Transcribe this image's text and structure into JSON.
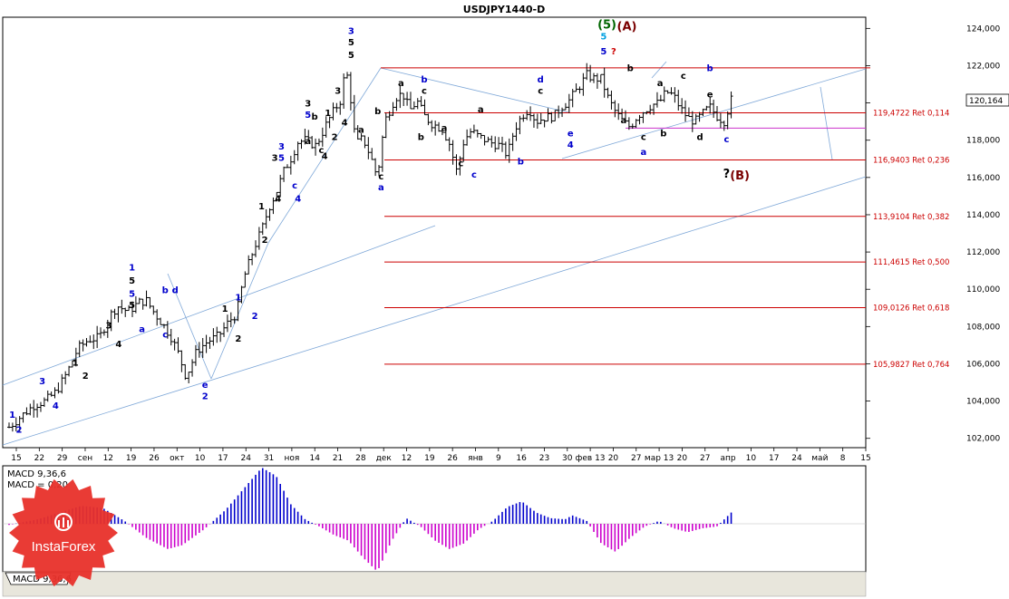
{
  "title": "USDJPY1440-D",
  "price_badge": "120,164",
  "macd": {
    "params_label": "MACD 9,36,6",
    "value_label": "MACD = 0,20",
    "tab_label": "MACD 9,36,6"
  },
  "logo": {
    "text": "InstaForex"
  },
  "colors": {
    "fib_line": "#cc0000",
    "channel": "#7fa8d8",
    "macd_pos": "#0000cc",
    "macd_neg": "#cc00cc",
    "support": "#cc33cc",
    "wave_blue": "#0000cc",
    "wave_black": "#000000",
    "wave_green": "#006600",
    "wave_brown": "#7a0000",
    "wave_red": "#cc0000",
    "wave_cyan": "#00a0e0"
  },
  "chart_data": {
    "type": "candlestick",
    "symbol": "USDJPY",
    "timeframe": "1440-D",
    "ylim": [
      101500,
      124600
    ],
    "y_ticks": [
      "124,000",
      "122,000",
      "120,000",
      "118,000",
      "116,000",
      "114,000",
      "112,000",
      "110,000",
      "108,000",
      "106,000",
      "104,000",
      "102,000"
    ],
    "y_tick_values": [
      124000,
      122000,
      120000,
      118000,
      116000,
      114000,
      112000,
      110000,
      108000,
      106000,
      104000,
      102000
    ],
    "x_ticks": [
      "15",
      "22",
      "29",
      "сен",
      "12",
      "19",
      "26",
      "окт",
      "10",
      "17",
      "24",
      "31",
      "ноя",
      "14",
      "21",
      "28",
      "дек",
      "12",
      "19",
      "26",
      "янв",
      "9",
      "16",
      "23",
      "30",
      "фев 13",
      "20",
      "27",
      "мар 13",
      "20",
      "27",
      "апр",
      "10",
      "17",
      "24",
      "май",
      "8",
      "15"
    ],
    "fib_levels": [
      {
        "label": "119,4722 Ret 0,114",
        "value": 119472.2
      },
      {
        "label": "116,9403 Ret 0,236",
        "value": 116940.3
      },
      {
        "label": "113,9104 Ret 0,382",
        "value": 113910.4
      },
      {
        "label": "111,4615 Ret 0,500",
        "value": 111461.5
      },
      {
        "label": "109,0126 Ret 0,618",
        "value": 109012.6
      },
      {
        "label": "105,9827 Ret 0,764",
        "value": 105982.7
      }
    ],
    "resistance_value": 121880,
    "support_value": 118650,
    "close_path": [
      [
        0,
        102600
      ],
      [
        4,
        103300
      ],
      [
        7,
        103800
      ],
      [
        10,
        104000
      ],
      [
        13,
        104500
      ],
      [
        16,
        105500
      ],
      [
        19,
        106800
      ],
      [
        22,
        107300
      ],
      [
        25,
        107400
      ],
      [
        28,
        108600
      ],
      [
        30,
        109100
      ],
      [
        33,
        108800
      ],
      [
        36,
        109300
      ],
      [
        38,
        109400
      ],
      [
        40,
        108800
      ],
      [
        43,
        108000
      ],
      [
        45,
        107400
      ],
      [
        47,
        106500
      ],
      [
        49,
        105300
      ],
      [
        52,
        106700
      ],
      [
        55,
        107200
      ],
      [
        58,
        107500
      ],
      [
        61,
        108300
      ],
      [
        63,
        108700
      ],
      [
        65,
        110600
      ],
      [
        68,
        112300
      ],
      [
        70,
        113200
      ],
      [
        72,
        114400
      ],
      [
        74,
        115200
      ],
      [
        76,
        116300
      ],
      [
        78,
        117000
      ],
      [
        80,
        117900
      ],
      [
        82,
        118000
      ],
      [
        85,
        117700
      ],
      [
        88,
        118900
      ],
      [
        90,
        119600
      ],
      [
        92,
        120200
      ],
      [
        93,
        121700
      ],
      [
        94,
        121300
      ],
      [
        96,
        117800
      ],
      [
        98,
        118100
      ],
      [
        100,
        117200
      ],
      [
        102,
        116000
      ],
      [
        104,
        119000
      ],
      [
        107,
        120300
      ],
      [
        109,
        120500
      ],
      [
        111,
        119600
      ],
      [
        113,
        120100
      ],
      [
        115,
        119300
      ],
      [
        117,
        118900
      ],
      [
        120,
        118600
      ],
      [
        122,
        117800
      ],
      [
        124,
        116300
      ],
      [
        126,
        118000
      ],
      [
        128,
        118500
      ],
      [
        130,
        118200
      ],
      [
        133,
        117900
      ],
      [
        136,
        117700
      ],
      [
        138,
        117200
      ],
      [
        140,
        118600
      ],
      [
        142,
        119300
      ],
      [
        144,
        119700
      ],
      [
        146,
        119000
      ],
      [
        148,
        119200
      ],
      [
        151,
        119300
      ],
      [
        153,
        119800
      ],
      [
        155,
        120100
      ],
      [
        158,
        120900
      ],
      [
        160,
        121500
      ],
      [
        162,
        121300
      ],
      [
        164,
        121300
      ],
      [
        166,
        120200
      ],
      [
        168,
        119500
      ],
      [
        170,
        119000
      ],
      [
        172,
        118700
      ],
      [
        174,
        119300
      ],
      [
        176,
        119600
      ],
      [
        178,
        119900
      ],
      [
        180,
        120000
      ],
      [
        182,
        120600
      ],
      [
        184,
        120400
      ],
      [
        186,
        119700
      ],
      [
        188,
        119200
      ],
      [
        190,
        119000
      ],
      [
        192,
        119400
      ],
      [
        194,
        119800
      ],
      [
        196,
        119300
      ],
      [
        198,
        119000
      ],
      [
        200,
        120164
      ]
    ],
    "macd_path": [
      [
        0,
        -0.02
      ],
      [
        8,
        0.08
      ],
      [
        14,
        0.2
      ],
      [
        20,
        0.32
      ],
      [
        26,
        0.28
      ],
      [
        32,
        0.05
      ],
      [
        38,
        -0.25
      ],
      [
        44,
        -0.45
      ],
      [
        48,
        -0.38
      ],
      [
        54,
        -0.1
      ],
      [
        60,
        0.25
      ],
      [
        66,
        0.7
      ],
      [
        70,
        1.0
      ],
      [
        74,
        0.85
      ],
      [
        78,
        0.35
      ],
      [
        82,
        0.08
      ],
      [
        86,
        -0.05
      ],
      [
        90,
        -0.2
      ],
      [
        94,
        -0.3
      ],
      [
        98,
        -0.6
      ],
      [
        102,
        -0.85
      ],
      [
        106,
        -0.3
      ],
      [
        110,
        0.1
      ],
      [
        114,
        -0.05
      ],
      [
        118,
        -0.3
      ],
      [
        122,
        -0.45
      ],
      [
        126,
        -0.35
      ],
      [
        130,
        -0.1
      ],
      [
        134,
        0.05
      ],
      [
        138,
        0.3
      ],
      [
        142,
        0.4
      ],
      [
        146,
        0.2
      ],
      [
        150,
        0.1
      ],
      [
        154,
        0.08
      ],
      [
        156,
        0.15
      ],
      [
        160,
        0.05
      ],
      [
        164,
        -0.35
      ],
      [
        168,
        -0.5
      ],
      [
        172,
        -0.25
      ],
      [
        176,
        -0.05
      ],
      [
        180,
        0.05
      ],
      [
        184,
        -0.08
      ],
      [
        188,
        -0.15
      ],
      [
        192,
        -0.08
      ],
      [
        196,
        -0.05
      ],
      [
        200,
        0.2
      ]
    ],
    "wave_labels": [
      {
        "text": "1",
        "i": 1,
        "v": 103100,
        "color": "wave_blue"
      },
      {
        "text": "2",
        "i": 3,
        "v": 102300,
        "color": "wave_blue"
      },
      {
        "text": "3",
        "i": 10,
        "v": 104900,
        "color": "wave_blue"
      },
      {
        "text": "4",
        "i": 14,
        "v": 103600,
        "color": "wave_blue"
      },
      {
        "text": "1",
        "i": 20,
        "v": 105900,
        "color": "wave_black"
      },
      {
        "text": "2",
        "i": 23,
        "v": 105200,
        "color": "wave_black"
      },
      {
        "text": "3",
        "i": 30,
        "v": 107900,
        "color": "wave_black"
      },
      {
        "text": "4",
        "i": 33,
        "v": 106900,
        "color": "wave_black"
      },
      {
        "text": "1",
        "i": 37,
        "v": 111000,
        "color": "wave_blue"
      },
      {
        "text": "5",
        "i": 37,
        "v": 110300,
        "color": "wave_black"
      },
      {
        "text": "5",
        "i": 37,
        "v": 109600,
        "color": "wave_blue"
      },
      {
        "text": "5",
        "i": 37,
        "v": 109000,
        "color": "wave_black"
      },
      {
        "text": "a",
        "i": 40,
        "v": 107700,
        "color": "wave_blue"
      },
      {
        "text": "b",
        "i": 47,
        "v": 109800,
        "color": "wave_blue"
      },
      {
        "text": "d",
        "i": 50,
        "v": 109800,
        "color": "wave_blue"
      },
      {
        "text": "c",
        "i": 47,
        "v": 107400,
        "color": "wave_blue"
      },
      {
        "text": "e",
        "i": 59,
        "v": 104700,
        "color": "wave_blue"
      },
      {
        "text": "2",
        "i": 59,
        "v": 104100,
        "color": "wave_blue"
      },
      {
        "text": "1",
        "i": 65,
        "v": 108800,
        "color": "wave_black"
      },
      {
        "text": "2",
        "i": 69,
        "v": 107200,
        "color": "wave_black"
      },
      {
        "text": "1",
        "i": 69,
        "v": 109400,
        "color": "wave_blue"
      },
      {
        "text": "2",
        "i": 74,
        "v": 108400,
        "color": "wave_blue"
      },
      {
        "text": "1",
        "i": 76,
        "v": 114300,
        "color": "wave_black"
      },
      {
        "text": "2",
        "i": 77,
        "v": 112500,
        "color": "wave_black"
      },
      {
        "text": "3",
        "i": 80,
        "v": 116900,
        "color": "wave_black"
      },
      {
        "text": "4",
        "i": 81,
        "v": 114700,
        "color": "wave_black"
      },
      {
        "text": "3",
        "i": 82,
        "v": 117500,
        "color": "wave_blue"
      },
      {
        "text": "5",
        "i": 82,
        "v": 116900,
        "color": "wave_blue"
      },
      {
        "text": "c",
        "i": 86,
        "v": 115400,
        "color": "wave_blue"
      },
      {
        "text": "4",
        "i": 87,
        "v": 114700,
        "color": "wave_blue"
      },
      {
        "text": "a",
        "i": 90,
        "v": 117800,
        "color": "wave_black"
      },
      {
        "text": "b",
        "i": 92,
        "v": 119100,
        "color": "wave_black"
      },
      {
        "text": "3",
        "i": 90,
        "v": 119800,
        "color": "wave_black"
      },
      {
        "text": "5",
        "i": 90,
        "v": 119200,
        "color": "wave_blue"
      },
      {
        "text": "c",
        "i": 94,
        "v": 117300,
        "color": "wave_black"
      },
      {
        "text": "4",
        "i": 95,
        "v": 117000,
        "color": "wave_black"
      },
      {
        "text": "1",
        "i": 96,
        "v": 119300,
        "color": "wave_black"
      },
      {
        "text": "2",
        "i": 98,
        "v": 118000,
        "color": "wave_black"
      },
      {
        "text": "3",
        "i": 99,
        "v": 120500,
        "color": "wave_black"
      },
      {
        "text": "4",
        "i": 101,
        "v": 118800,
        "color": "wave_black"
      },
      {
        "text": "3",
        "i": 103,
        "v": 123700,
        "color": "wave_blue"
      },
      {
        "text": "5",
        "i": 103,
        "v": 123100,
        "color": "wave_black"
      },
      {
        "text": "5",
        "i": 103,
        "v": 122400,
        "color": "wave_black"
      },
      {
        "text": "a",
        "i": 106,
        "v": 118400,
        "color": "wave_black"
      },
      {
        "text": "b",
        "i": 111,
        "v": 119400,
        "color": "wave_black"
      },
      {
        "text": "c",
        "i": 112,
        "v": 115900,
        "color": "wave_black"
      },
      {
        "text": "a",
        "i": 112,
        "v": 115300,
        "color": "wave_blue"
      },
      {
        "text": "a",
        "i": 118,
        "v": 120900,
        "color": "wave_black"
      },
      {
        "text": "b",
        "i": 125,
        "v": 121100,
        "color": "wave_blue"
      },
      {
        "text": "c",
        "i": 125,
        "v": 120500,
        "color": "wave_black"
      },
      {
        "text": "b",
        "i": 124,
        "v": 118000,
        "color": "wave_black"
      },
      {
        "text": "a",
        "i": 131,
        "v": 118500,
        "color": "wave_black"
      },
      {
        "text": "c",
        "i": 136,
        "v": 116600,
        "color": "wave_black"
      },
      {
        "text": "c",
        "i": 140,
        "v": 116000,
        "color": "wave_blue"
      },
      {
        "text": "a",
        "i": 142,
        "v": 119500,
        "color": "wave_black"
      },
      {
        "text": "b",
        "i": 154,
        "v": 116700,
        "color": "wave_blue"
      },
      {
        "text": "c",
        "i": 160,
        "v": 120500,
        "color": "wave_black"
      },
      {
        "text": "d",
        "i": 160,
        "v": 121100,
        "color": "wave_blue"
      },
      {
        "text": "e",
        "i": 169,
        "v": 118200,
        "color": "wave_blue"
      },
      {
        "text": "4",
        "i": 169,
        "v": 117600,
        "color": "wave_blue"
      },
      {
        "text": "5",
        "i": 179,
        "v": 122600,
        "color": "wave_blue"
      },
      {
        "text": "5",
        "i": 179,
        "v": 123400,
        "color": "wave_cyan"
      },
      {
        "text": "?",
        "i": 182,
        "v": 122600,
        "color": "wave_red"
      },
      {
        "text": "b",
        "i": 187,
        "v": 121700,
        "color": "wave_black"
      },
      {
        "text": "a",
        "i": 185,
        "v": 118900,
        "color": "wave_black"
      },
      {
        "text": "c",
        "i": 191,
        "v": 118000,
        "color": "wave_black"
      },
      {
        "text": "a",
        "i": 191,
        "v": 117200,
        "color": "wave_blue"
      },
      {
        "text": "b",
        "i": 197,
        "v": 118200,
        "color": "wave_black"
      },
      {
        "text": "a",
        "i": 196,
        "v": 120900,
        "color": "wave_black"
      },
      {
        "text": "c",
        "i": 203,
        "v": 121300,
        "color": "wave_black"
      },
      {
        "text": "d",
        "i": 208,
        "v": 118000,
        "color": "wave_black"
      },
      {
        "text": "e",
        "i": 211,
        "v": 120300,
        "color": "wave_black"
      },
      {
        "text": "b",
        "i": 211,
        "v": 121700,
        "color": "wave_blue"
      },
      {
        "text": "c",
        "i": 216,
        "v": 117900,
        "color": "wave_blue"
      }
    ],
    "big_labels": [
      {
        "text": "(5)",
        "i": 180,
        "v": 124000,
        "color": "wave_green"
      },
      {
        "text": "(A)",
        "i": 186,
        "v": 123900,
        "color": "wave_brown"
      },
      {
        "text": "?",
        "i": 216,
        "v": 116000,
        "color": "wave_black"
      },
      {
        "text": "(B)",
        "i": 220,
        "v": 115900,
        "color": "wave_brown"
      }
    ]
  }
}
